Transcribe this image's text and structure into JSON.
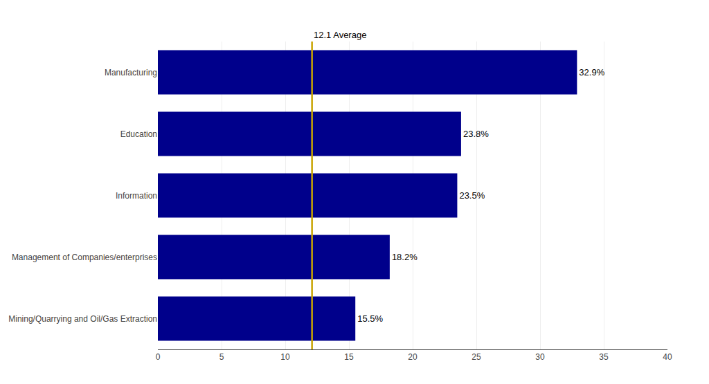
{
  "chart_data": {
    "type": "bar",
    "orientation": "horizontal",
    "categories": [
      "Mining/Quarrying and Oil/Gas Extraction",
      "Management of Companies/enterprises",
      "Information",
      "Education",
      "Manufacturing"
    ],
    "values": [
      15.5,
      18.2,
      23.5,
      23.8,
      32.9
    ],
    "value_labels": [
      "15.5%",
      "18.2%",
      "23.5%",
      "23.8%",
      "32.9%"
    ],
    "data_labels": true,
    "color": "#00008B",
    "average": {
      "value": 12.1,
      "label": "12.1 Average",
      "color": "#C8A400"
    },
    "xlim": [
      0,
      40
    ],
    "xticks": [
      0,
      5,
      10,
      15,
      20,
      25,
      30,
      35,
      40
    ],
    "grid": true
  }
}
